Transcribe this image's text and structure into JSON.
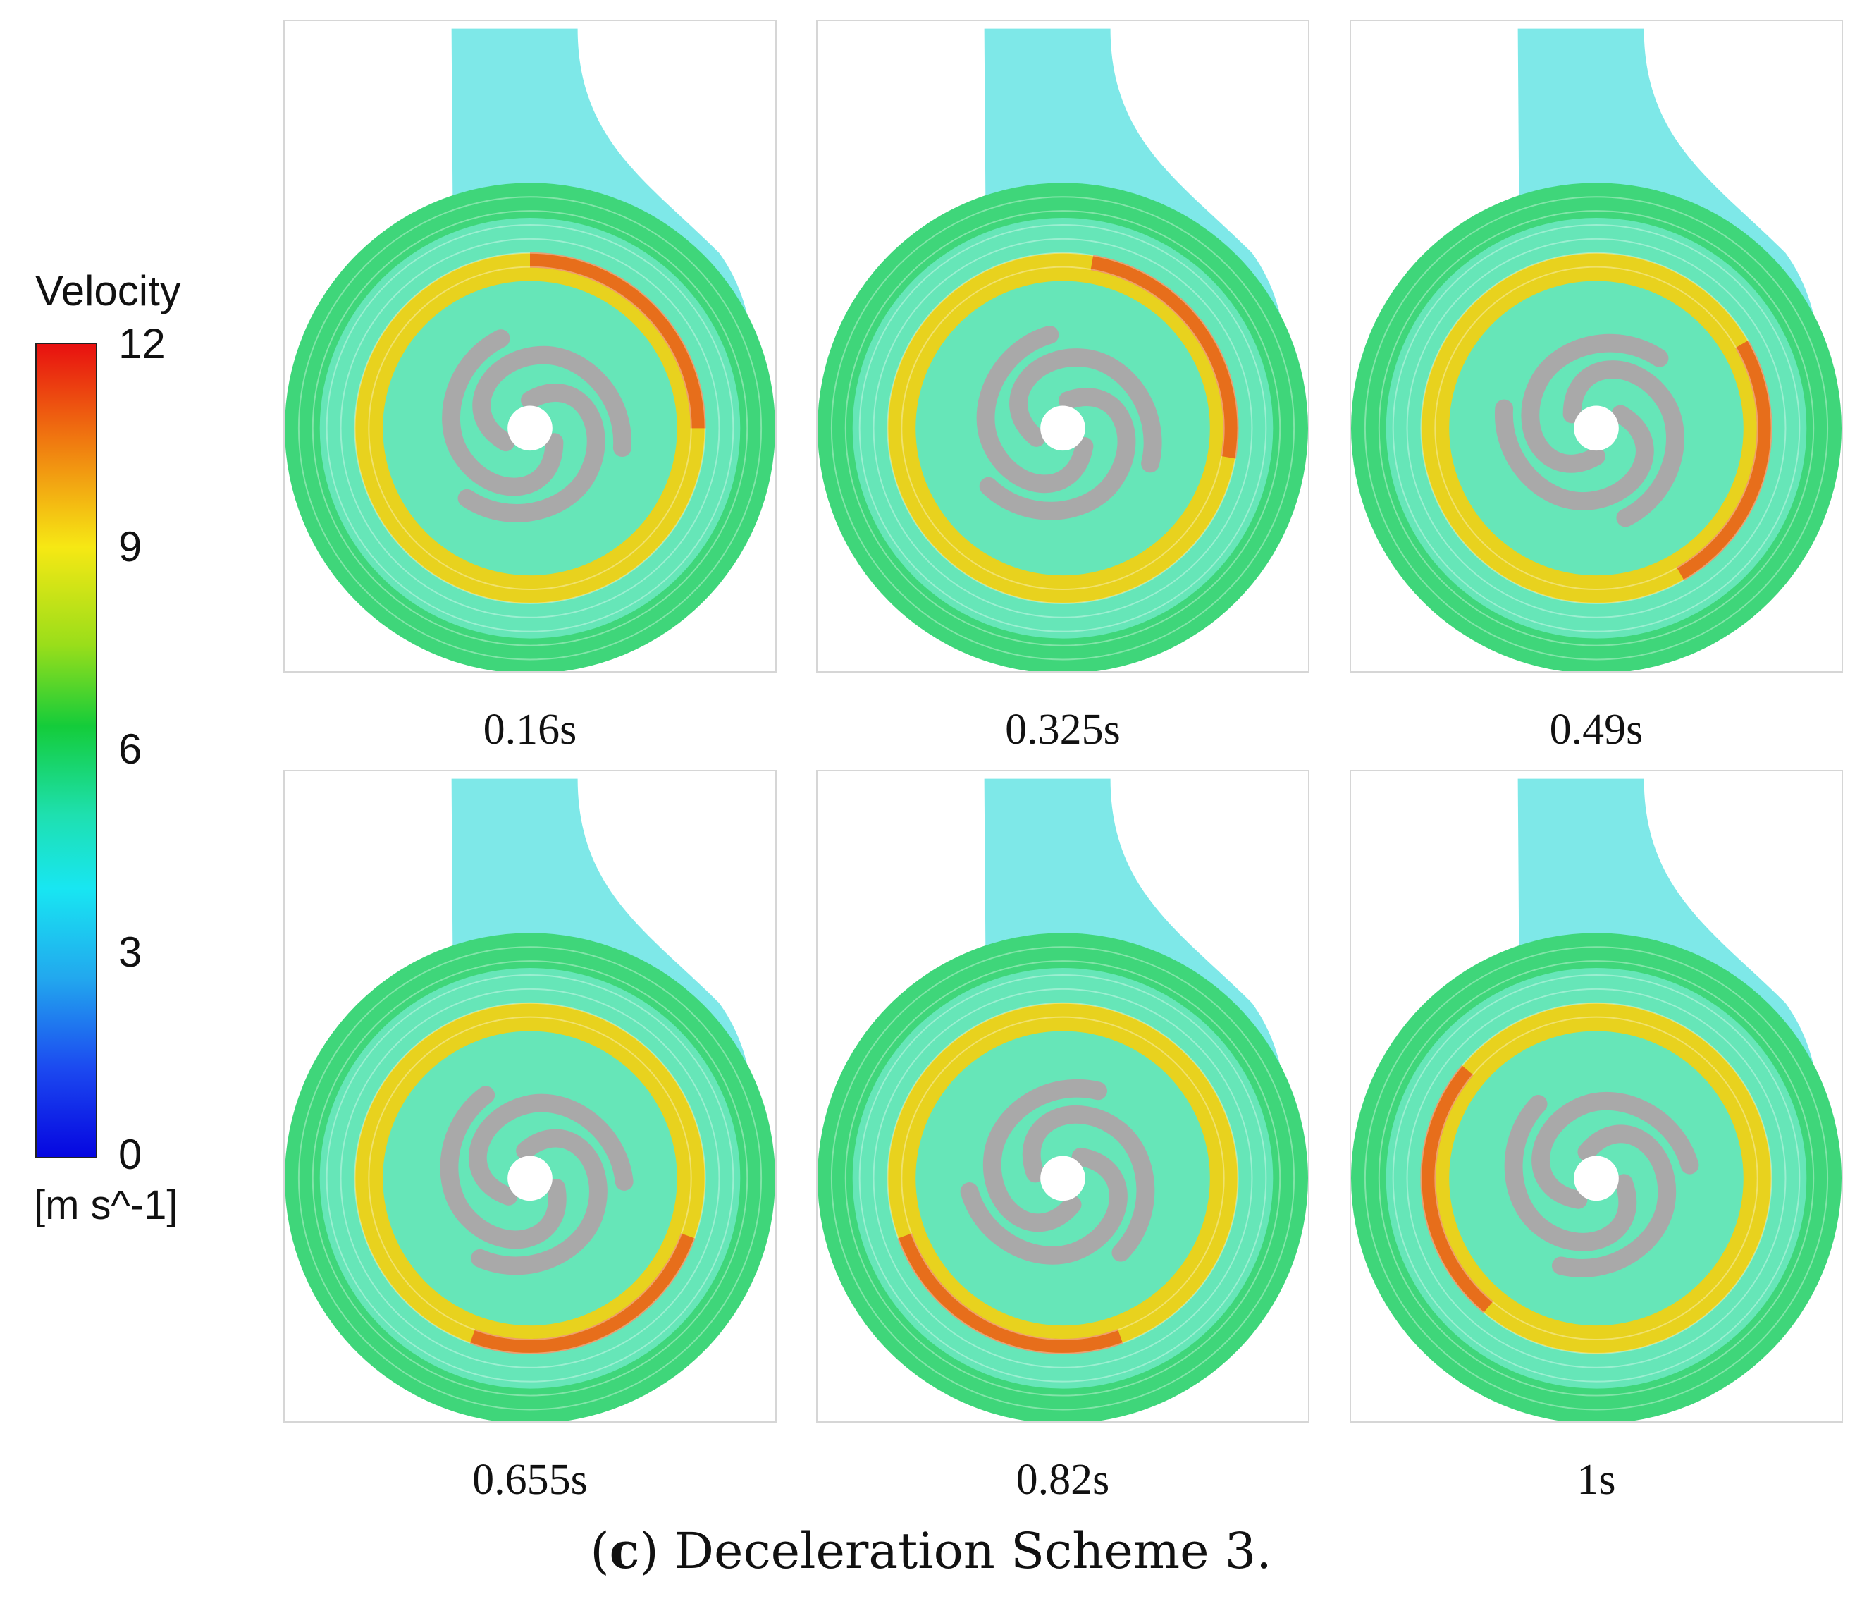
{
  "legend": {
    "title": "Velocity",
    "ticks": [
      "12",
      "9",
      "6",
      "3",
      "0"
    ],
    "unit": "[m s^-1]",
    "range": [
      0,
      12
    ]
  },
  "panels": [
    {
      "time": "0.16s",
      "inlet_angle_deg": -20,
      "blade_angle_deg": 0
    },
    {
      "time": "0.325s",
      "inlet_angle_deg": -20,
      "blade_angle_deg": 10
    },
    {
      "time": "0.49s",
      "inlet_angle_deg": -20,
      "blade_angle_deg": 60
    },
    {
      "time": "0.655s",
      "inlet_angle_deg": -20,
      "blade_angle_deg": 110
    },
    {
      "time": "0.82s",
      "inlet_angle_deg": -20,
      "blade_angle_deg": 160
    },
    {
      "time": "1s",
      "inlet_angle_deg": -20,
      "blade_angle_deg": 220
    }
  ],
  "caption": {
    "label": "c",
    "text": "Deceleration Scheme 3."
  },
  "colors": {
    "volute_outer": "#3fd67a",
    "volute_mid": "#66e6b8",
    "outlet": "#7ee8e8",
    "high_band": "#e8d21e",
    "peak": "#e6551a",
    "impeller": "#a9a9a9",
    "eye": "#ffffff"
  }
}
